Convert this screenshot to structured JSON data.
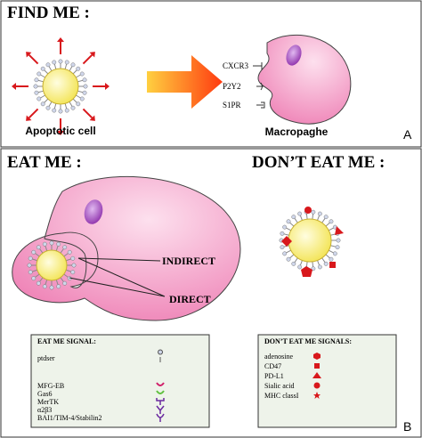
{
  "panel_a": {
    "title": "FIND ME :",
    "apoptotic_label": "Apoptotic cell",
    "receptors": [
      "CXCR3",
      "P2Y2",
      "S1PR"
    ],
    "macrophage_label": "Macropaghe",
    "panel_label": "A"
  },
  "panel_b": {
    "eat_me_title": "EAT ME :",
    "dont_eat_me_title": "DON’T EAT ME :",
    "arrows": [
      "INDIRECT",
      "DIRECT"
    ],
    "eat_me_legend": {
      "title": "EAT ME SIGNAL:",
      "items": [
        "ptdser",
        "MFG-EB",
        "Gas6",
        "MerTK",
        "α2β3",
        "BAI1/TIM-4/Stabilin2"
      ]
    },
    "dont_eat_me_legend": {
      "title": "DON’T EAT ME SIGNALS:",
      "items": [
        "adenosine",
        "CD47",
        "PD-L1",
        "Sialic acid",
        "MHC classI"
      ]
    },
    "panel_label": "B"
  }
}
